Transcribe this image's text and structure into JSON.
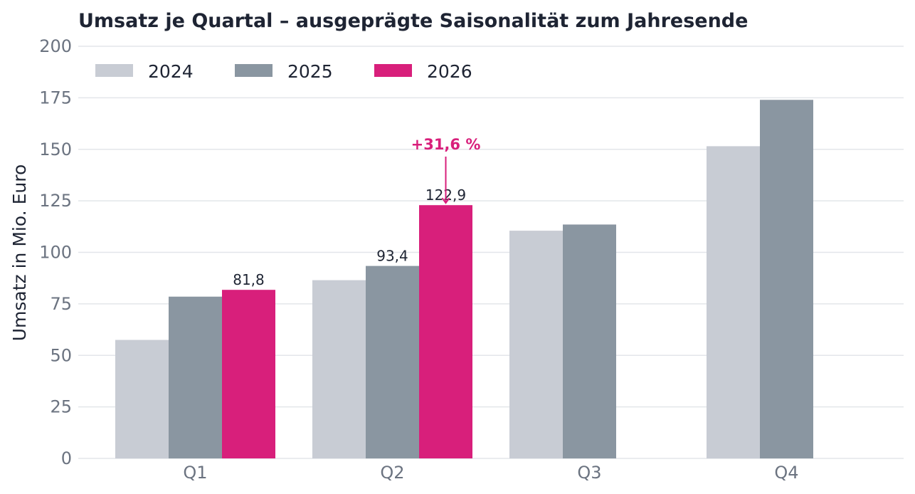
{
  "chart_data": {
    "type": "bar",
    "title": "Umsatz je Quartal – ausgeprägte Saisonalität zum Jahresende",
    "xlabel": "",
    "ylabel": "Umsatz in Mio. Euro",
    "ylim": [
      0,
      200
    ],
    "yticks": [
      "0",
      "25",
      "50",
      "75",
      "100",
      "125",
      "150",
      "175",
      "200"
    ],
    "grid": true,
    "legend_position": "top-left",
    "categories": [
      "Q1",
      "Q2",
      "Q3",
      "Q4"
    ],
    "series": [
      {
        "name": "2024",
        "color": "#c8ccd4",
        "values": [
          57.5,
          86.5,
          110.5,
          151.5
        ]
      },
      {
        "name": "2025",
        "color": "#8a96a1",
        "values": [
          78.5,
          93.4,
          113.5,
          174
        ]
      },
      {
        "name": "2026",
        "color": "#d81f7b",
        "values": [
          81.8,
          122.9,
          null,
          null
        ]
      }
    ],
    "data_labels": [
      {
        "series": 2,
        "category": 0,
        "text": "81,8"
      },
      {
        "series": 1,
        "category": 1,
        "text": "93,4"
      },
      {
        "series": 2,
        "category": 1,
        "text": "122,9"
      }
    ],
    "annotations": [
      {
        "series": 2,
        "category": 1,
        "text": "+31,6 %",
        "color": "#d81f7b"
      }
    ]
  }
}
